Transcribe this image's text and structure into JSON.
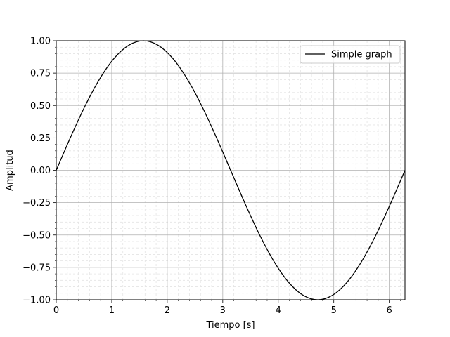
{
  "chart_data": {
    "type": "line",
    "xlabel": "Tiempo [s]",
    "ylabel": "Amplitud",
    "xlim": [
      0,
      6.2832
    ],
    "ylim": [
      -1.0,
      1.0
    ],
    "x_ticks": [
      0,
      1,
      2,
      3,
      4,
      5,
      6
    ],
    "x_tick_labels": [
      "0",
      "1",
      "2",
      "3",
      "4",
      "5",
      "6"
    ],
    "y_ticks": [
      -1.0,
      -0.75,
      -0.5,
      -0.25,
      0.0,
      0.25,
      0.5,
      0.75,
      1.0
    ],
    "y_tick_labels": [
      "−1.00",
      "−0.75",
      "−0.50",
      "−0.25",
      "0.00",
      "0.25",
      "0.50",
      "0.75",
      "1.00"
    ],
    "grid": true,
    "minor_grid": true,
    "legend_position": "top-right",
    "series": [
      {
        "name": "Simple graph",
        "color": "#000000",
        "x": [
          0,
          0.2618,
          0.5236,
          0.7854,
          1.0472,
          1.309,
          1.5708,
          1.8326,
          2.0944,
          2.3562,
          2.618,
          2.8798,
          3.1416,
          3.4034,
          3.6652,
          3.927,
          4.1888,
          4.4506,
          4.7124,
          4.9742,
          5.236,
          5.4978,
          5.7596,
          6.0214,
          6.2832
        ],
        "y": [
          0,
          0.2588,
          0.5,
          0.7071,
          0.866,
          0.9659,
          1,
          0.9659,
          0.866,
          0.7071,
          0.5,
          0.2588,
          0,
          -0.2588,
          -0.5,
          -0.7071,
          -0.866,
          -0.9659,
          -1,
          -0.9659,
          -0.866,
          -0.7071,
          -0.5,
          -0.2588,
          0
        ]
      }
    ]
  }
}
